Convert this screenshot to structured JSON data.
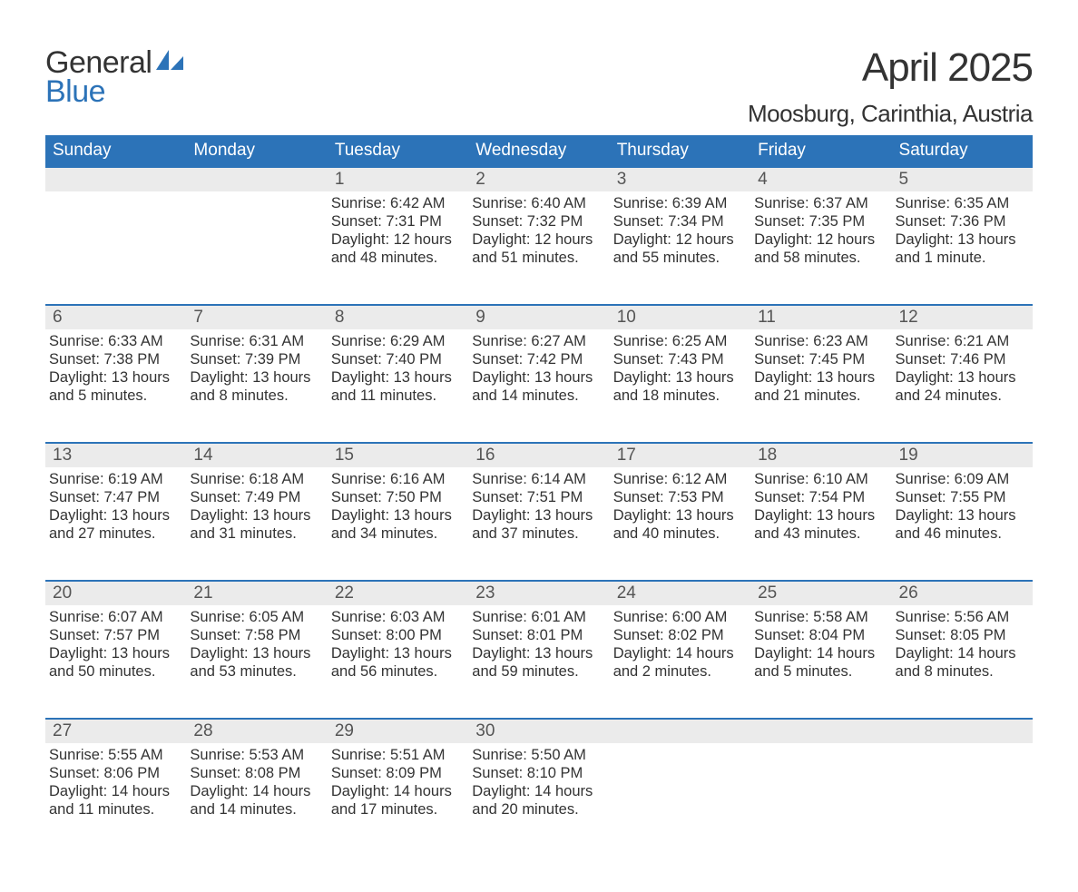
{
  "logo": {
    "word1": "General",
    "word2": "Blue"
  },
  "title": "April 2025",
  "location": "Moosburg, Carinthia, Austria",
  "colors": {
    "header_bg": "#2c73b8",
    "header_text": "#ffffff",
    "dayhead_bg": "#ebebeb",
    "dayhead_border": "#2c73b8",
    "body_text": "#333333",
    "daynum_text": "#555555"
  },
  "weekdays": [
    "Sunday",
    "Monday",
    "Tuesday",
    "Wednesday",
    "Thursday",
    "Friday",
    "Saturday"
  ],
  "weeks": [
    [
      {
        "day": "",
        "sunrise": "",
        "sunset": "",
        "daylight1": "",
        "daylight2": ""
      },
      {
        "day": "",
        "sunrise": "",
        "sunset": "",
        "daylight1": "",
        "daylight2": ""
      },
      {
        "day": "1",
        "sunrise": "Sunrise: 6:42 AM",
        "sunset": "Sunset: 7:31 PM",
        "daylight1": "Daylight: 12 hours",
        "daylight2": "and 48 minutes."
      },
      {
        "day": "2",
        "sunrise": "Sunrise: 6:40 AM",
        "sunset": "Sunset: 7:32 PM",
        "daylight1": "Daylight: 12 hours",
        "daylight2": "and 51 minutes."
      },
      {
        "day": "3",
        "sunrise": "Sunrise: 6:39 AM",
        "sunset": "Sunset: 7:34 PM",
        "daylight1": "Daylight: 12 hours",
        "daylight2": "and 55 minutes."
      },
      {
        "day": "4",
        "sunrise": "Sunrise: 6:37 AM",
        "sunset": "Sunset: 7:35 PM",
        "daylight1": "Daylight: 12 hours",
        "daylight2": "and 58 minutes."
      },
      {
        "day": "5",
        "sunrise": "Sunrise: 6:35 AM",
        "sunset": "Sunset: 7:36 PM",
        "daylight1": "Daylight: 13 hours",
        "daylight2": "and 1 minute."
      }
    ],
    [
      {
        "day": "6",
        "sunrise": "Sunrise: 6:33 AM",
        "sunset": "Sunset: 7:38 PM",
        "daylight1": "Daylight: 13 hours",
        "daylight2": "and 5 minutes."
      },
      {
        "day": "7",
        "sunrise": "Sunrise: 6:31 AM",
        "sunset": "Sunset: 7:39 PM",
        "daylight1": "Daylight: 13 hours",
        "daylight2": "and 8 minutes."
      },
      {
        "day": "8",
        "sunrise": "Sunrise: 6:29 AM",
        "sunset": "Sunset: 7:40 PM",
        "daylight1": "Daylight: 13 hours",
        "daylight2": "and 11 minutes."
      },
      {
        "day": "9",
        "sunrise": "Sunrise: 6:27 AM",
        "sunset": "Sunset: 7:42 PM",
        "daylight1": "Daylight: 13 hours",
        "daylight2": "and 14 minutes."
      },
      {
        "day": "10",
        "sunrise": "Sunrise: 6:25 AM",
        "sunset": "Sunset: 7:43 PM",
        "daylight1": "Daylight: 13 hours",
        "daylight2": "and 18 minutes."
      },
      {
        "day": "11",
        "sunrise": "Sunrise: 6:23 AM",
        "sunset": "Sunset: 7:45 PM",
        "daylight1": "Daylight: 13 hours",
        "daylight2": "and 21 minutes."
      },
      {
        "day": "12",
        "sunrise": "Sunrise: 6:21 AM",
        "sunset": "Sunset: 7:46 PM",
        "daylight1": "Daylight: 13 hours",
        "daylight2": "and 24 minutes."
      }
    ],
    [
      {
        "day": "13",
        "sunrise": "Sunrise: 6:19 AM",
        "sunset": "Sunset: 7:47 PM",
        "daylight1": "Daylight: 13 hours",
        "daylight2": "and 27 minutes."
      },
      {
        "day": "14",
        "sunrise": "Sunrise: 6:18 AM",
        "sunset": "Sunset: 7:49 PM",
        "daylight1": "Daylight: 13 hours",
        "daylight2": "and 31 minutes."
      },
      {
        "day": "15",
        "sunrise": "Sunrise: 6:16 AM",
        "sunset": "Sunset: 7:50 PM",
        "daylight1": "Daylight: 13 hours",
        "daylight2": "and 34 minutes."
      },
      {
        "day": "16",
        "sunrise": "Sunrise: 6:14 AM",
        "sunset": "Sunset: 7:51 PM",
        "daylight1": "Daylight: 13 hours",
        "daylight2": "and 37 minutes."
      },
      {
        "day": "17",
        "sunrise": "Sunrise: 6:12 AM",
        "sunset": "Sunset: 7:53 PM",
        "daylight1": "Daylight: 13 hours",
        "daylight2": "and 40 minutes."
      },
      {
        "day": "18",
        "sunrise": "Sunrise: 6:10 AM",
        "sunset": "Sunset: 7:54 PM",
        "daylight1": "Daylight: 13 hours",
        "daylight2": "and 43 minutes."
      },
      {
        "day": "19",
        "sunrise": "Sunrise: 6:09 AM",
        "sunset": "Sunset: 7:55 PM",
        "daylight1": "Daylight: 13 hours",
        "daylight2": "and 46 minutes."
      }
    ],
    [
      {
        "day": "20",
        "sunrise": "Sunrise: 6:07 AM",
        "sunset": "Sunset: 7:57 PM",
        "daylight1": "Daylight: 13 hours",
        "daylight2": "and 50 minutes."
      },
      {
        "day": "21",
        "sunrise": "Sunrise: 6:05 AM",
        "sunset": "Sunset: 7:58 PM",
        "daylight1": "Daylight: 13 hours",
        "daylight2": "and 53 minutes."
      },
      {
        "day": "22",
        "sunrise": "Sunrise: 6:03 AM",
        "sunset": "Sunset: 8:00 PM",
        "daylight1": "Daylight: 13 hours",
        "daylight2": "and 56 minutes."
      },
      {
        "day": "23",
        "sunrise": "Sunrise: 6:01 AM",
        "sunset": "Sunset: 8:01 PM",
        "daylight1": "Daylight: 13 hours",
        "daylight2": "and 59 minutes."
      },
      {
        "day": "24",
        "sunrise": "Sunrise: 6:00 AM",
        "sunset": "Sunset: 8:02 PM",
        "daylight1": "Daylight: 14 hours",
        "daylight2": "and 2 minutes."
      },
      {
        "day": "25",
        "sunrise": "Sunrise: 5:58 AM",
        "sunset": "Sunset: 8:04 PM",
        "daylight1": "Daylight: 14 hours",
        "daylight2": "and 5 minutes."
      },
      {
        "day": "26",
        "sunrise": "Sunrise: 5:56 AM",
        "sunset": "Sunset: 8:05 PM",
        "daylight1": "Daylight: 14 hours",
        "daylight2": "and 8 minutes."
      }
    ],
    [
      {
        "day": "27",
        "sunrise": "Sunrise: 5:55 AM",
        "sunset": "Sunset: 8:06 PM",
        "daylight1": "Daylight: 14 hours",
        "daylight2": "and 11 minutes."
      },
      {
        "day": "28",
        "sunrise": "Sunrise: 5:53 AM",
        "sunset": "Sunset: 8:08 PM",
        "daylight1": "Daylight: 14 hours",
        "daylight2": "and 14 minutes."
      },
      {
        "day": "29",
        "sunrise": "Sunrise: 5:51 AM",
        "sunset": "Sunset: 8:09 PM",
        "daylight1": "Daylight: 14 hours",
        "daylight2": "and 17 minutes."
      },
      {
        "day": "30",
        "sunrise": "Sunrise: 5:50 AM",
        "sunset": "Sunset: 8:10 PM",
        "daylight1": "Daylight: 14 hours",
        "daylight2": "and 20 minutes."
      },
      {
        "day": "",
        "sunrise": "",
        "sunset": "",
        "daylight1": "",
        "daylight2": ""
      },
      {
        "day": "",
        "sunrise": "",
        "sunset": "",
        "daylight1": "",
        "daylight2": ""
      },
      {
        "day": "",
        "sunrise": "",
        "sunset": "",
        "daylight1": "",
        "daylight2": ""
      }
    ]
  ]
}
